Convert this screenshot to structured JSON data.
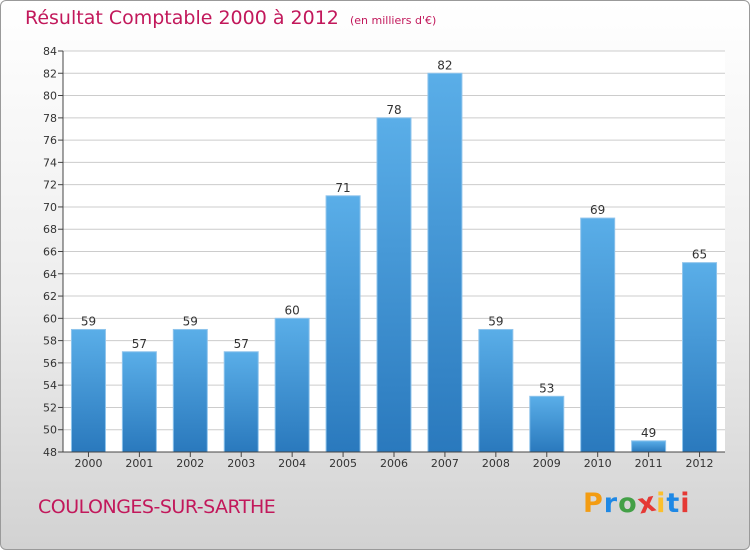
{
  "title": "Résultat Comptable 2000 à 2012",
  "subtitle": "(en milliers d'€)",
  "place": "COULONGES-SUR-SARTHE",
  "logo": {
    "letters": [
      "P",
      "r",
      "o",
      "x",
      "i",
      "t",
      "i"
    ],
    "colors": [
      "#f39c12",
      "#1e88e5",
      "#43a047",
      "#e53935",
      "#fbc02d",
      "#1e88e5",
      "#e53935"
    ]
  },
  "colors": {
    "title": "#c2185b",
    "bar_top": "#5aaee8",
    "bar_bottom": "#2a79bd",
    "grid": "#cccccc",
    "axis": "#444444"
  },
  "chart_data": {
    "type": "bar",
    "categories": [
      "2000",
      "2001",
      "2002",
      "2003",
      "2004",
      "2005",
      "2006",
      "2007",
      "2008",
      "2009",
      "2010",
      "2011",
      "2012"
    ],
    "values": [
      59,
      57,
      59,
      57,
      60,
      71,
      78,
      82,
      59,
      53,
      69,
      49,
      65
    ],
    "ylim": [
      48,
      84
    ],
    "yticks": [
      48,
      50,
      52,
      54,
      56,
      58,
      60,
      62,
      64,
      66,
      68,
      70,
      72,
      74,
      76,
      78,
      80,
      82,
      84
    ],
    "grid": true,
    "xlabel": "",
    "ylabel": ""
  }
}
